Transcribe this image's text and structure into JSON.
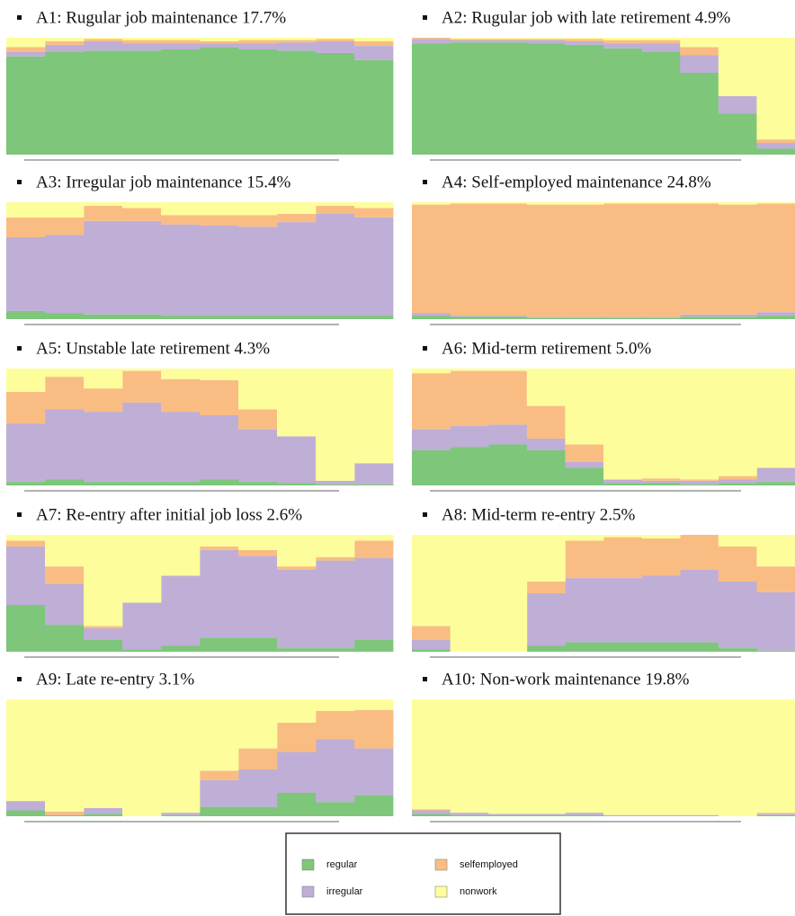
{
  "legend": {
    "items": [
      {
        "name": "regular",
        "color": "#7dc67a"
      },
      {
        "name": "irregular",
        "color": "#bfaed6"
      },
      {
        "name": "selfemployed",
        "color": "#f9bd83"
      },
      {
        "name": "nonwork",
        "color": "#fdfd9c"
      }
    ]
  },
  "chart_data": [
    {
      "type": "stacked-step",
      "title": "A1: Rugular job maintenance 17.7%",
      "categories": [
        null,
        null,
        null,
        null,
        null,
        null,
        null,
        null,
        null,
        null
      ],
      "ylim": [
        0,
        100
      ],
      "series": [
        {
          "values": [
            84,
            88,
            89,
            89,
            90,
            92,
            90,
            89,
            87,
            81
          ]
        },
        {
          "values": [
            4,
            6,
            8,
            6,
            5,
            3,
            5,
            7,
            10,
            12
          ]
        },
        {
          "values": [
            4,
            3,
            2,
            3,
            3,
            2,
            3,
            2,
            2,
            4
          ]
        },
        {
          "values": [
            8,
            3,
            1,
            2,
            2,
            3,
            2,
            2,
            1,
            3
          ]
        }
      ]
    },
    {
      "type": "stacked-step",
      "title": "A2: Rugular job with late retirement 4.9%",
      "categories": [
        null,
        null,
        null,
        null,
        null,
        null,
        null,
        null,
        null,
        null
      ],
      "ylim": [
        0,
        100
      ],
      "series": [
        {
          "values": [
            95,
            96,
            96,
            95,
            94,
            91,
            88,
            70,
            35,
            5
          ]
        },
        {
          "values": [
            4,
            2,
            2,
            3,
            3,
            4,
            7,
            15,
            15,
            5
          ]
        },
        {
          "values": [
            1,
            1,
            1,
            1,
            2,
            3,
            3,
            7,
            0,
            3
          ]
        },
        {
          "values": [
            0,
            1,
            1,
            1,
            1,
            2,
            2,
            8,
            50,
            87
          ]
        }
      ]
    },
    {
      "type": "stacked-step",
      "title": "A3: Irregular job maintenance 15.4%",
      "categories": [
        null,
        null,
        null,
        null,
        null,
        null,
        null,
        null,
        null,
        null
      ],
      "ylim": [
        0,
        100
      ],
      "series": [
        {
          "values": [
            7,
            5,
            4,
            4,
            3,
            3,
            3,
            3,
            3,
            3
          ]
        },
        {
          "values": [
            63,
            67,
            80,
            80,
            78,
            77,
            76,
            80,
            87,
            84
          ]
        },
        {
          "values": [
            17,
            15,
            13,
            11,
            8,
            9,
            10,
            7,
            7,
            8
          ]
        },
        {
          "values": [
            13,
            13,
            3,
            5,
            11,
            11,
            11,
            10,
            3,
            5
          ]
        }
      ]
    },
    {
      "type": "stacked-step",
      "title": "A4: Self-employed maintenance 24.8%",
      "categories": [
        null,
        null,
        null,
        null,
        null,
        null,
        null,
        null,
        null,
        null
      ],
      "ylim": [
        0,
        100
      ],
      "series": [
        {
          "values": [
            3,
            2,
            2,
            1,
            1,
            1,
            1,
            2,
            2,
            3
          ]
        },
        {
          "values": [
            2,
            1,
            1,
            1,
            1,
            1,
            1,
            2,
            2,
            3
          ]
        },
        {
          "values": [
            93,
            96,
            96,
            96,
            96,
            97,
            97,
            95,
            94,
            93
          ]
        },
        {
          "values": [
            2,
            1,
            1,
            2,
            2,
            1,
            1,
            1,
            2,
            1
          ]
        }
      ]
    },
    {
      "type": "stacked-step",
      "title": "A5: Unstable late retirement 4.3%",
      "categories": [
        null,
        null,
        null,
        null,
        null,
        null,
        null,
        null,
        null,
        null
      ],
      "ylim": [
        0,
        100
      ],
      "series": [
        {
          "values": [
            3,
            5,
            3,
            3,
            3,
            5,
            3,
            2,
            1,
            1
          ]
        },
        {
          "values": [
            50,
            60,
            60,
            68,
            60,
            55,
            45,
            40,
            3,
            18
          ]
        },
        {
          "values": [
            27,
            28,
            20,
            27,
            28,
            30,
            17,
            0,
            0,
            0
          ]
        },
        {
          "values": [
            20,
            7,
            17,
            2,
            9,
            10,
            35,
            58,
            96,
            81
          ]
        }
      ]
    },
    {
      "type": "stacked-step",
      "title": "A6: Mid-term retirement 5.0%",
      "categories": [
        null,
        null,
        null,
        null,
        null,
        null,
        null,
        null,
        null,
        null
      ],
      "ylim": [
        0,
        100
      ],
      "series": [
        {
          "values": [
            30,
            33,
            35,
            30,
            15,
            2,
            2,
            1,
            2,
            3
          ]
        },
        {
          "values": [
            18,
            18,
            17,
            10,
            5,
            3,
            2,
            3,
            3,
            12
          ]
        },
        {
          "values": [
            48,
            47,
            46,
            28,
            15,
            0,
            2,
            1,
            3,
            0
          ]
        },
        {
          "values": [
            4,
            2,
            2,
            32,
            65,
            95,
            94,
            95,
            92,
            85
          ]
        }
      ]
    },
    {
      "type": "stacked-step",
      "title": "A7: Re-entry after initial job loss 2.6%",
      "categories": [
        null,
        null,
        null,
        null,
        null,
        null,
        null,
        null,
        null,
        null
      ],
      "ylim": [
        0,
        100
      ],
      "series": [
        {
          "values": [
            40,
            23,
            10,
            2,
            5,
            12,
            12,
            3,
            3,
            10
          ]
        },
        {
          "values": [
            50,
            35,
            10,
            40,
            60,
            75,
            70,
            67,
            75,
            70
          ]
        },
        {
          "values": [
            5,
            15,
            2,
            0,
            0,
            3,
            5,
            3,
            3,
            15
          ]
        },
        {
          "values": [
            5,
            27,
            78,
            58,
            35,
            10,
            13,
            27,
            19,
            5
          ]
        }
      ]
    },
    {
      "type": "stacked-step",
      "title": "A8: Mid-term re-entry 2.5%",
      "categories": [
        null,
        null,
        null,
        null,
        null,
        null,
        null,
        null,
        null,
        null
      ],
      "ylim": [
        0,
        100
      ],
      "series": [
        {
          "values": [
            2,
            0,
            0,
            5,
            8,
            8,
            8,
            8,
            3,
            1
          ]
        },
        {
          "values": [
            8,
            0,
            0,
            45,
            55,
            55,
            57,
            62,
            57,
            50
          ]
        },
        {
          "values": [
            12,
            0,
            0,
            10,
            32,
            35,
            32,
            30,
            30,
            22
          ]
        },
        {
          "values": [
            78,
            100,
            100,
            40,
            5,
            2,
            3,
            0,
            10,
            27
          ]
        }
      ]
    },
    {
      "type": "stacked-step",
      "title": "A9: Late re-entry 3.1%",
      "categories": [
        null,
        null,
        null,
        null,
        null,
        null,
        null,
        null,
        null,
        null
      ],
      "ylim": [
        0,
        100
      ],
      "series": [
        {
          "values": [
            5,
            1,
            2,
            0,
            1,
            8,
            8,
            20,
            12,
            18
          ]
        },
        {
          "values": [
            8,
            0,
            5,
            0,
            2,
            23,
            32,
            35,
            54,
            40
          ]
        },
        {
          "values": [
            0,
            3,
            0,
            0,
            0,
            8,
            18,
            25,
            24,
            33
          ]
        },
        {
          "values": [
            87,
            96,
            93,
            100,
            97,
            61,
            42,
            20,
            10,
            9
          ]
        }
      ]
    },
    {
      "type": "stacked-step",
      "title": "A10: Non-work maintenance 19.8%",
      "categories": [
        null,
        null,
        null,
        null,
        null,
        null,
        null,
        null,
        null,
        null
      ],
      "ylim": [
        0,
        100
      ],
      "series": [
        {
          "values": [
            2,
            1,
            1,
            1,
            1,
            0,
            0,
            0,
            0,
            1
          ]
        },
        {
          "values": [
            3,
            2,
            1,
            1,
            2,
            1,
            1,
            1,
            0,
            1
          ]
        },
        {
          "values": [
            1,
            0,
            0,
            0,
            0,
            0,
            0,
            0,
            0,
            1
          ]
        },
        {
          "values": [
            94,
            97,
            98,
            98,
            97,
            99,
            99,
            99,
            100,
            97
          ]
        }
      ]
    }
  ]
}
